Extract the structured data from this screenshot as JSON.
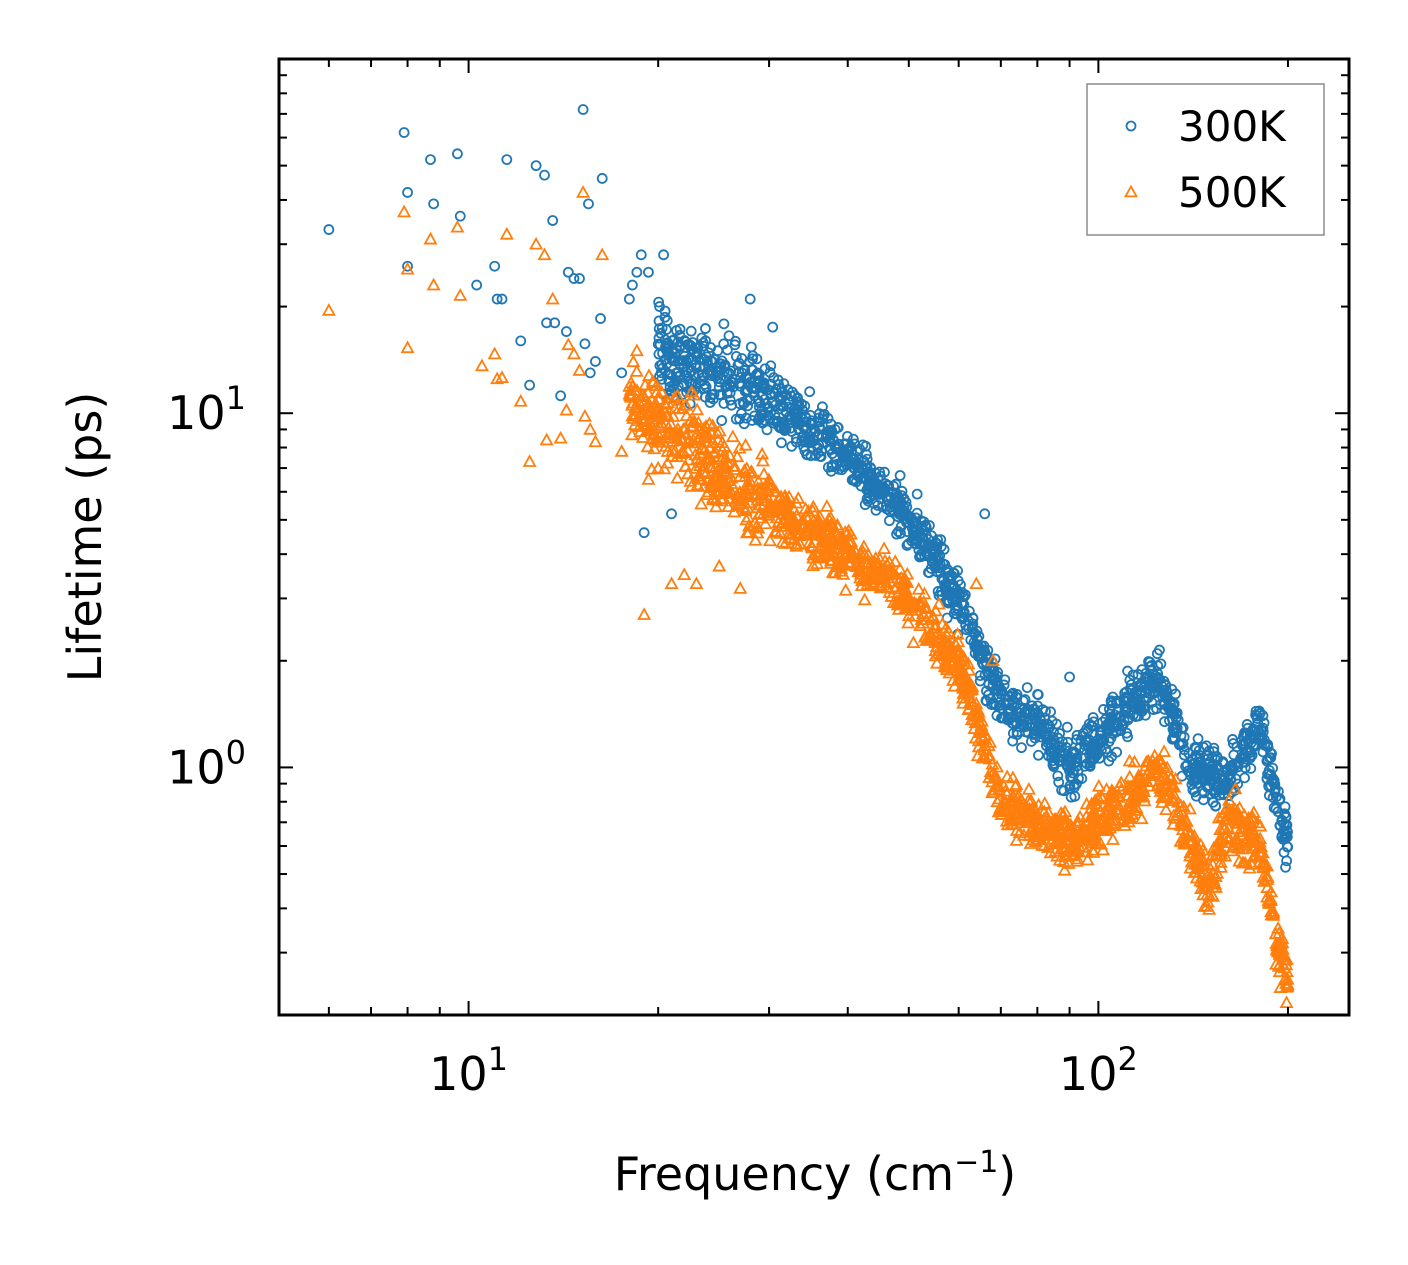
{
  "chart_data": {
    "type": "scatter",
    "title": "",
    "xlabel": "Frequency (cm",
    "xlabel_superscript": "−1",
    "xlabel_suffix": ")",
    "ylabel": "Lifetime (ps)",
    "xscale": "log",
    "yscale": "log",
    "xlim": [
      5.0,
      250.0
    ],
    "ylim": [
      0.2,
      100.0
    ],
    "x_ticks": [
      {
        "value": 10,
        "base": "10",
        "exp": "1"
      },
      {
        "value": 100,
        "base": "10",
        "exp": "2"
      }
    ],
    "y_ticks": [
      {
        "value": 1,
        "base": "10",
        "exp": "0"
      },
      {
        "value": 10,
        "base": "10",
        "exp": "1"
      }
    ],
    "legend_position": "top-right",
    "grid": false,
    "series": [
      {
        "name": "300K",
        "marker": "circle",
        "color": "#1f77b4",
        "trend": [
          [
            20,
            15.0
          ],
          [
            30,
            11.0
          ],
          [
            40,
            7.5
          ],
          [
            50,
            5.0
          ],
          [
            60,
            3.0
          ],
          [
            70,
            1.5
          ],
          [
            80,
            1.3
          ],
          [
            90,
            1.0
          ],
          [
            110,
            1.45
          ],
          [
            125,
            1.8
          ],
          [
            140,
            1.0
          ],
          [
            160,
            0.9
          ],
          [
            180,
            1.3
          ],
          [
            200,
            0.6
          ]
        ],
        "points": [
          [
            6.0,
            33
          ],
          [
            7.9,
            62
          ],
          [
            8.0,
            42
          ],
          [
            8.0,
            26
          ],
          [
            8.7,
            52
          ],
          [
            8.8,
            39
          ],
          [
            9.6,
            54
          ],
          [
            9.7,
            36
          ],
          [
            10.3,
            23
          ],
          [
            11.0,
            26
          ],
          [
            11.1,
            21
          ],
          [
            11.3,
            21
          ],
          [
            11.5,
            52
          ],
          [
            12.1,
            16
          ],
          [
            12.5,
            12
          ],
          [
            12.8,
            50
          ],
          [
            13.2,
            47
          ],
          [
            13.3,
            18
          ],
          [
            13.6,
            35
          ],
          [
            13.7,
            18
          ],
          [
            14.0,
            11.2
          ],
          [
            14.3,
            17
          ],
          [
            14.4,
            25
          ],
          [
            14.7,
            24
          ],
          [
            15.0,
            24
          ],
          [
            15.2,
            72
          ],
          [
            15.3,
            15.7
          ],
          [
            15.5,
            39
          ],
          [
            15.6,
            13
          ],
          [
            15.9,
            14
          ],
          [
            16.2,
            18.5
          ],
          [
            16.3,
            46
          ],
          [
            17.5,
            13
          ],
          [
            18.0,
            21
          ],
          [
            18.2,
            23
          ],
          [
            18.5,
            25
          ],
          [
            18.8,
            28
          ],
          [
            19.0,
            4.6
          ],
          [
            19.3,
            25
          ],
          [
            20.1,
            20
          ],
          [
            20.4,
            28
          ],
          [
            21.0,
            5.2
          ],
          [
            28.0,
            21
          ],
          [
            30.4,
            17.5
          ],
          [
            34.8,
            11.5
          ],
          [
            66.0,
            5.2
          ],
          [
            90.0,
            1.8
          ]
        ]
      },
      {
        "name": "500K",
        "marker": "triangle",
        "color": "#ff7f0e",
        "trend": [
          [
            18,
            11.0
          ],
          [
            25,
            7.0
          ],
          [
            30,
            5.5
          ],
          [
            40,
            4.0
          ],
          [
            50,
            3.0
          ],
          [
            60,
            2.0
          ],
          [
            70,
            0.8
          ],
          [
            80,
            0.7
          ],
          [
            90,
            0.6
          ],
          [
            110,
            0.8
          ],
          [
            125,
            1.0
          ],
          [
            140,
            0.6
          ],
          [
            150,
            0.45
          ],
          [
            160,
            0.7
          ],
          [
            180,
            0.6
          ],
          [
            190,
            0.35
          ],
          [
            200,
            0.25
          ]
        ],
        "points": [
          [
            6.0,
            19.5
          ],
          [
            7.9,
            37
          ],
          [
            8.0,
            25.5
          ],
          [
            8.0,
            15.3
          ],
          [
            8.7,
            31
          ],
          [
            8.8,
            23
          ],
          [
            9.6,
            33.5
          ],
          [
            9.7,
            21.5
          ],
          [
            10.5,
            13.6
          ],
          [
            11.0,
            14.7
          ],
          [
            11.1,
            12.5
          ],
          [
            11.3,
            12.6
          ],
          [
            11.5,
            32
          ],
          [
            12.1,
            10.8
          ],
          [
            12.5,
            7.3
          ],
          [
            12.8,
            30
          ],
          [
            13.2,
            28
          ],
          [
            13.3,
            8.4
          ],
          [
            13.6,
            21
          ],
          [
            14.0,
            8.5
          ],
          [
            14.3,
            10.2
          ],
          [
            14.4,
            15.6
          ],
          [
            14.7,
            14.7
          ],
          [
            15.0,
            13.2
          ],
          [
            15.2,
            42
          ],
          [
            15.3,
            9.8
          ],
          [
            15.6,
            9.0
          ],
          [
            15.9,
            8.3
          ],
          [
            16.3,
            28
          ],
          [
            17.5,
            7.8
          ],
          [
            18.0,
            11.9
          ],
          [
            18.5,
            15.0
          ],
          [
            19.0,
            2.7
          ],
          [
            19.3,
            6.5
          ],
          [
            20.0,
            7.0
          ],
          [
            21.0,
            3.3
          ],
          [
            22.0,
            3.5
          ],
          [
            23.0,
            3.3
          ],
          [
            25.0,
            3.7
          ],
          [
            27.0,
            3.2
          ],
          [
            64.0,
            3.3
          ],
          [
            68.0,
            2.0
          ]
        ]
      }
    ]
  }
}
